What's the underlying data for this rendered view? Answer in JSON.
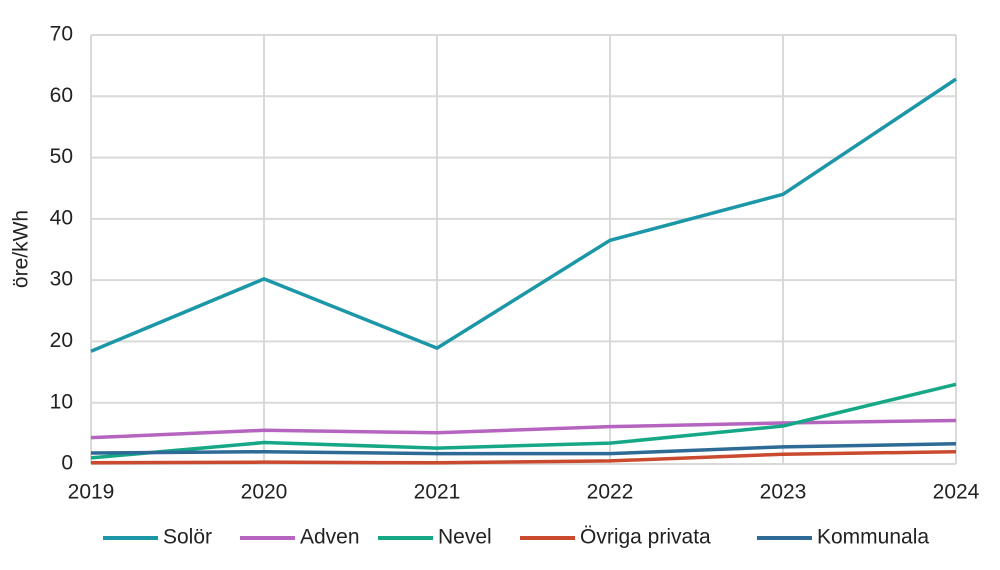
{
  "chart_data": {
    "type": "line",
    "y_label": "öre/kWh",
    "x": [
      2019,
      2020,
      2021,
      2022,
      2023,
      2024
    ],
    "xlim": [
      2019,
      2024
    ],
    "xticks": [
      2019,
      2020,
      2021,
      2022,
      2023,
      2024
    ],
    "ylim": [
      0,
      70
    ],
    "yticks": [
      0,
      10,
      20,
      30,
      40,
      50,
      60,
      70
    ],
    "grid": true,
    "legend": "bottom",
    "series": [
      {
        "name": "Solör",
        "color": "#1b97a7",
        "values": [
          18.4,
          30.2,
          18.9,
          36.5,
          44.0,
          62.8
        ]
      },
      {
        "name": "Adven",
        "color": "#b565c0",
        "values": [
          4.3,
          5.5,
          5.1,
          6.1,
          6.7,
          7.1
        ]
      },
      {
        "name": "Nevel",
        "color": "#16a886",
        "values": [
          1.0,
          3.5,
          2.6,
          3.4,
          6.2,
          13.0
        ]
      },
      {
        "name": "Övriga privata",
        "color": "#c94a2e",
        "values": [
          0.2,
          0.3,
          0.2,
          0.5,
          1.6,
          2.0
        ]
      },
      {
        "name": "Kommunala",
        "color": "#2e6a96",
        "values": [
          1.8,
          2.0,
          1.7,
          1.7,
          2.8,
          3.3
        ]
      }
    ]
  }
}
